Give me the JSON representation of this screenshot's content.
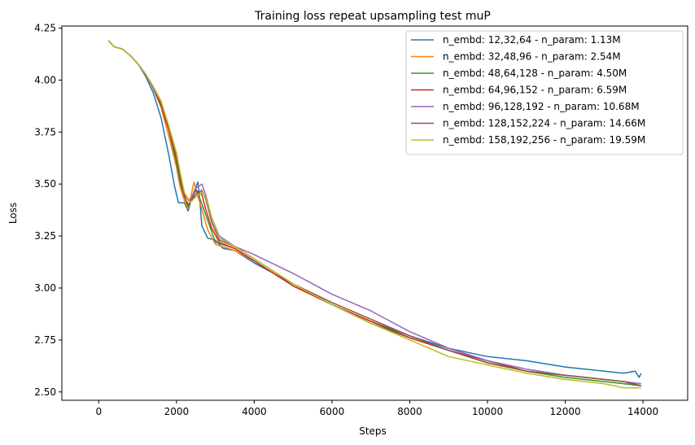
{
  "chart_data": {
    "type": "line",
    "title": "Training loss repeat upsampling  test muP",
    "xlabel": "Steps",
    "ylabel": "Loss",
    "xlim": [
      -950,
      15150
    ],
    "ylim": [
      2.46,
      4.26
    ],
    "xticks": [
      0,
      2000,
      4000,
      6000,
      8000,
      10000,
      12000,
      14000
    ],
    "yticks": [
      2.5,
      2.75,
      3.0,
      3.25,
      3.5,
      3.75,
      4.0,
      4.25
    ],
    "xtick_labels": [
      "0",
      "2000",
      "4000",
      "6000",
      "8000",
      "10000",
      "12000",
      "14000"
    ],
    "ytick_labels": [
      "2.50",
      "2.75",
      "3.00",
      "3.25",
      "3.50",
      "3.75",
      "4.00",
      "4.25"
    ],
    "grid": false,
    "legend_position": "top-right",
    "series": [
      {
        "name": "n_embd: 12,32,64 - n_param: 1.13M",
        "color": "#1f77b4",
        "points": [
          [
            250,
            4.19
          ],
          [
            400,
            4.16
          ],
          [
            600,
            4.15
          ],
          [
            800,
            4.12
          ],
          [
            1000,
            4.08
          ],
          [
            1200,
            4.02
          ],
          [
            1400,
            3.94
          ],
          [
            1600,
            3.82
          ],
          [
            1800,
            3.64
          ],
          [
            1950,
            3.49
          ],
          [
            2050,
            3.41
          ],
          [
            2200,
            3.41
          ],
          [
            2300,
            3.37
          ],
          [
            2400,
            3.44
          ],
          [
            2550,
            3.51
          ],
          [
            2600,
            3.42
          ],
          [
            2650,
            3.3
          ],
          [
            2800,
            3.24
          ],
          [
            3000,
            3.23
          ],
          [
            3200,
            3.19
          ],
          [
            3500,
            3.18
          ],
          [
            4000,
            3.12
          ],
          [
            5000,
            3.02
          ],
          [
            6000,
            2.92
          ],
          [
            7000,
            2.84
          ],
          [
            8000,
            2.77
          ],
          [
            9000,
            2.71
          ],
          [
            10000,
            2.67
          ],
          [
            11000,
            2.65
          ],
          [
            12000,
            2.62
          ],
          [
            13000,
            2.6
          ],
          [
            13500,
            2.59
          ],
          [
            13800,
            2.6
          ],
          [
            13900,
            2.57
          ],
          [
            13950,
            2.59
          ]
        ]
      },
      {
        "name": "n_embd: 32,48,96 - n_param: 2.54M",
        "color": "#ff7f0e",
        "points": [
          [
            250,
            4.19
          ],
          [
            400,
            4.16
          ],
          [
            600,
            4.15
          ],
          [
            800,
            4.12
          ],
          [
            1000,
            4.08
          ],
          [
            1200,
            4.03
          ],
          [
            1400,
            3.96
          ],
          [
            1600,
            3.87
          ],
          [
            1800,
            3.73
          ],
          [
            2000,
            3.58
          ],
          [
            2100,
            3.48
          ],
          [
            2200,
            3.42
          ],
          [
            2300,
            3.38
          ],
          [
            2450,
            3.51
          ],
          [
            2550,
            3.44
          ],
          [
            2650,
            3.38
          ],
          [
            2800,
            3.28
          ],
          [
            3000,
            3.21
          ],
          [
            3500,
            3.18
          ],
          [
            4000,
            3.13
          ],
          [
            5000,
            3.01
          ],
          [
            6000,
            2.92
          ],
          [
            7000,
            2.84
          ],
          [
            8000,
            2.76
          ],
          [
            9000,
            2.7
          ],
          [
            10000,
            2.64
          ],
          [
            11000,
            2.6
          ],
          [
            12000,
            2.57
          ],
          [
            13000,
            2.55
          ],
          [
            13500,
            2.54
          ],
          [
            13950,
            2.53
          ]
        ]
      },
      {
        "name": "n_embd: 48,64,128 - n_param: 4.50M",
        "color": "#2ca02c",
        "points": [
          [
            250,
            4.19
          ],
          [
            400,
            4.16
          ],
          [
            600,
            4.15
          ],
          [
            800,
            4.12
          ],
          [
            1000,
            4.08
          ],
          [
            1200,
            4.03
          ],
          [
            1400,
            3.96
          ],
          [
            1600,
            3.88
          ],
          [
            1800,
            3.76
          ],
          [
            2000,
            3.6
          ],
          [
            2100,
            3.5
          ],
          [
            2200,
            3.44
          ],
          [
            2300,
            3.39
          ],
          [
            2500,
            3.47
          ],
          [
            2600,
            3.43
          ],
          [
            2700,
            3.38
          ],
          [
            2850,
            3.3
          ],
          [
            3000,
            3.22
          ],
          [
            3500,
            3.19
          ],
          [
            4000,
            3.13
          ],
          [
            5000,
            3.01
          ],
          [
            6000,
            2.92
          ],
          [
            7000,
            2.83
          ],
          [
            8000,
            2.76
          ],
          [
            9000,
            2.7
          ],
          [
            10000,
            2.64
          ],
          [
            11000,
            2.6
          ],
          [
            12000,
            2.57
          ],
          [
            13000,
            2.55
          ],
          [
            13500,
            2.54
          ],
          [
            13950,
            2.53
          ]
        ]
      },
      {
        "name": "n_embd: 64,96,152 - n_param: 6.59M",
        "color": "#d62728",
        "points": [
          [
            250,
            4.19
          ],
          [
            400,
            4.16
          ],
          [
            600,
            4.15
          ],
          [
            800,
            4.12
          ],
          [
            1000,
            4.08
          ],
          [
            1200,
            4.03
          ],
          [
            1400,
            3.96
          ],
          [
            1600,
            3.88
          ],
          [
            1800,
            3.76
          ],
          [
            2000,
            3.62
          ],
          [
            2100,
            3.52
          ],
          [
            2200,
            3.44
          ],
          [
            2300,
            3.4
          ],
          [
            2500,
            3.47
          ],
          [
            2650,
            3.45
          ],
          [
            2750,
            3.38
          ],
          [
            2900,
            3.29
          ],
          [
            3100,
            3.22
          ],
          [
            3500,
            3.19
          ],
          [
            4000,
            3.13
          ],
          [
            5000,
            3.01
          ],
          [
            6000,
            2.92
          ],
          [
            7000,
            2.84
          ],
          [
            8000,
            2.76
          ],
          [
            9000,
            2.7
          ],
          [
            10000,
            2.65
          ],
          [
            11000,
            2.6
          ],
          [
            12000,
            2.58
          ],
          [
            13000,
            2.56
          ],
          [
            13500,
            2.55
          ],
          [
            13950,
            2.53
          ]
        ]
      },
      {
        "name": "n_embd: 96,128,192 - n_param: 10.68M",
        "color": "#9467bd",
        "points": [
          [
            250,
            4.19
          ],
          [
            400,
            4.16
          ],
          [
            600,
            4.15
          ],
          [
            800,
            4.12
          ],
          [
            1000,
            4.08
          ],
          [
            1200,
            4.03
          ],
          [
            1400,
            3.96
          ],
          [
            1600,
            3.89
          ],
          [
            1800,
            3.78
          ],
          [
            2000,
            3.63
          ],
          [
            2100,
            3.54
          ],
          [
            2200,
            3.45
          ],
          [
            2350,
            3.42
          ],
          [
            2500,
            3.48
          ],
          [
            2650,
            3.5
          ],
          [
            2750,
            3.45
          ],
          [
            2900,
            3.34
          ],
          [
            3100,
            3.25
          ],
          [
            3500,
            3.2
          ],
          [
            4000,
            3.16
          ],
          [
            5000,
            3.07
          ],
          [
            6000,
            2.97
          ],
          [
            7000,
            2.89
          ],
          [
            8000,
            2.79
          ],
          [
            9000,
            2.71
          ],
          [
            10000,
            2.65
          ],
          [
            11000,
            2.61
          ],
          [
            12000,
            2.58
          ],
          [
            13000,
            2.56
          ],
          [
            13500,
            2.55
          ],
          [
            13950,
            2.54
          ]
        ]
      },
      {
        "name": "n_embd: 128,152,224 - n_param: 14.66M",
        "color": "#8c564b",
        "points": [
          [
            250,
            4.19
          ],
          [
            400,
            4.16
          ],
          [
            600,
            4.15
          ],
          [
            800,
            4.12
          ],
          [
            1000,
            4.08
          ],
          [
            1200,
            4.03
          ],
          [
            1400,
            3.97
          ],
          [
            1600,
            3.89
          ],
          [
            1800,
            3.77
          ],
          [
            2000,
            3.63
          ],
          [
            2100,
            3.53
          ],
          [
            2200,
            3.45
          ],
          [
            2350,
            3.41
          ],
          [
            2500,
            3.45
          ],
          [
            2650,
            3.47
          ],
          [
            2750,
            3.43
          ],
          [
            2900,
            3.32
          ],
          [
            3100,
            3.23
          ],
          [
            3500,
            3.2
          ],
          [
            4000,
            3.14
          ],
          [
            5000,
            3.02
          ],
          [
            6000,
            2.93
          ],
          [
            7000,
            2.85
          ],
          [
            8000,
            2.77
          ],
          [
            9000,
            2.7
          ],
          [
            10000,
            2.64
          ],
          [
            11000,
            2.6
          ],
          [
            12000,
            2.58
          ],
          [
            13000,
            2.56
          ],
          [
            13500,
            2.55
          ],
          [
            13950,
            2.53
          ]
        ]
      },
      {
        "name": "n_embd: 158,192,256 - n_param: 19.59M",
        "color": "#bcbd22",
        "points": [
          [
            250,
            4.19
          ],
          [
            400,
            4.16
          ],
          [
            600,
            4.15
          ],
          [
            800,
            4.12
          ],
          [
            1000,
            4.08
          ],
          [
            1200,
            4.03
          ],
          [
            1400,
            3.97
          ],
          [
            1600,
            3.9
          ],
          [
            1800,
            3.78
          ],
          [
            2000,
            3.65
          ],
          [
            2100,
            3.55
          ],
          [
            2200,
            3.46
          ],
          [
            2350,
            3.41
          ],
          [
            2500,
            3.44
          ],
          [
            2650,
            3.46
          ],
          [
            2750,
            3.44
          ],
          [
            2900,
            3.34
          ],
          [
            3100,
            3.24
          ],
          [
            3500,
            3.2
          ],
          [
            4000,
            3.14
          ],
          [
            5000,
            3.02
          ],
          [
            6000,
            2.92
          ],
          [
            7000,
            2.83
          ],
          [
            8000,
            2.75
          ],
          [
            9000,
            2.67
          ],
          [
            10000,
            2.63
          ],
          [
            11000,
            2.59
          ],
          [
            12000,
            2.56
          ],
          [
            13000,
            2.54
          ],
          [
            13500,
            2.52
          ],
          [
            13950,
            2.52
          ]
        ]
      }
    ]
  }
}
